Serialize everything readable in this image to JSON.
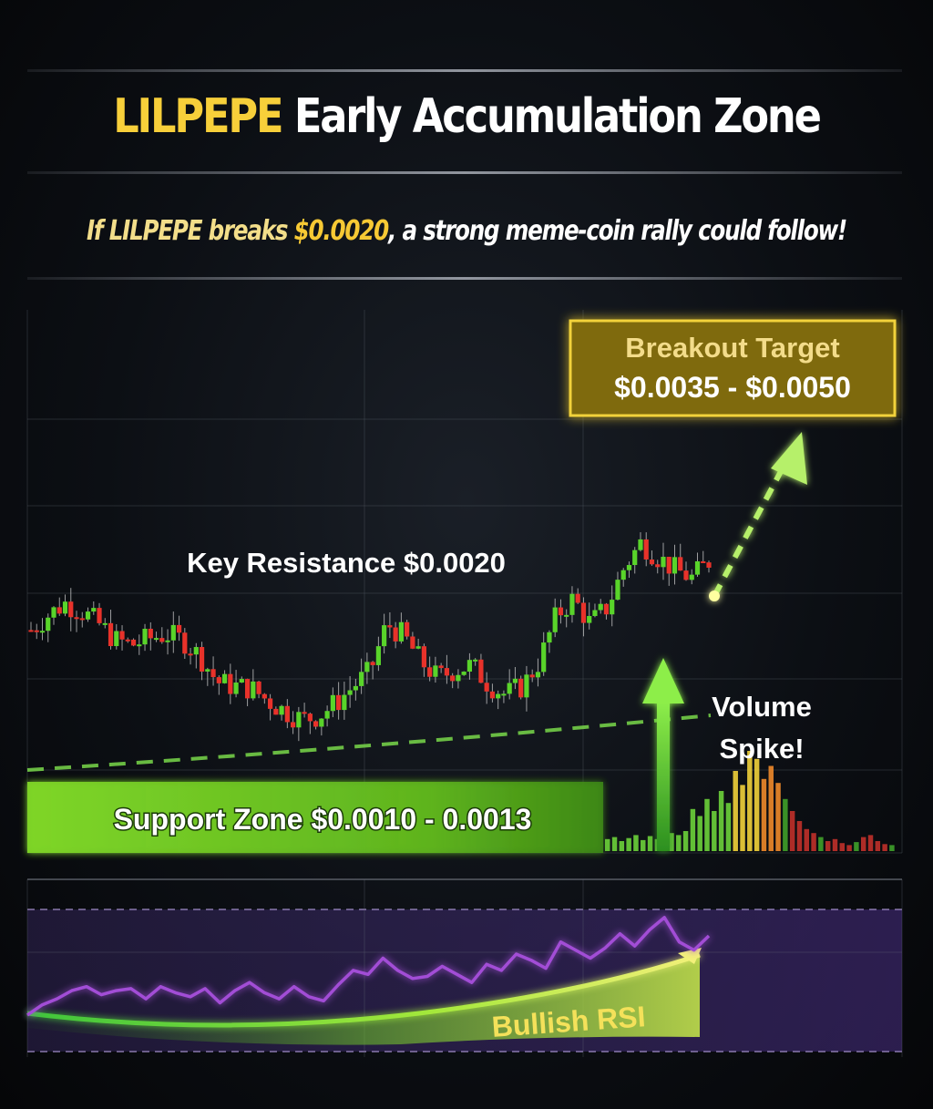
{
  "header": {
    "title_accent": "LILPEPE",
    "title_rest": "Early Accumulation Zone",
    "subtitle_part1": "If LILPEPE breaks",
    "subtitle_price": "$0.0020",
    "subtitle_part2": ", a strong meme-coin rally could follow!"
  },
  "colors": {
    "accent_yellow": "#f7cf3a",
    "bull_green": "#59d42a",
    "bear_red": "#e8322a",
    "resistance_red": "#ff3b30",
    "support_green": "#8fe93a",
    "rsi_purple": "#a24dd6"
  },
  "chart_data": [
    {
      "type": "candlestick",
      "annotations": {
        "resistance": {
          "label": "Key Resistance $0.0020",
          "value": 0.002
        },
        "support": {
          "label": "Support Zone $0.0010 - 0.0013",
          "range": [
            0.001,
            0.0013
          ]
        },
        "target": {
          "title": "Breakout Target",
          "range_text": "$0.0035 - $0.0050",
          "range": [
            0.0035,
            0.005
          ]
        },
        "volume": {
          "line1": "Volume",
          "line2": "Spike!"
        }
      },
      "price_path": [
        0.00165,
        0.00172,
        0.00178,
        0.00174,
        0.00168,
        0.0016,
        0.00158,
        0.00161,
        0.00163,
        0.0016,
        0.00152,
        0.0014,
        0.00138,
        0.00137,
        0.00131,
        0.00126,
        0.00122,
        0.00124,
        0.0013,
        0.00138,
        0.00145,
        0.00168,
        0.00162,
        0.0015,
        0.00142,
        0.00146,
        0.00148,
        0.00139,
        0.00134,
        0.00138,
        0.0015,
        0.00172,
        0.0018,
        0.00168,
        0.00176,
        0.00195,
        0.00207,
        0.002,
        0.00194,
        0.0019,
        0.00198
      ],
      "volume": [
        0.12,
        0.14,
        0.1,
        0.13,
        0.16,
        0.11,
        0.15,
        0.12,
        0.14,
        0.18,
        0.16,
        0.2,
        0.42,
        0.35,
        0.52,
        0.4,
        0.6,
        0.48,
        0.8,
        0.66,
        1.0,
        0.92,
        0.72,
        0.85,
        0.68,
        0.52,
        0.4,
        0.3,
        0.22,
        0.18,
        0.14,
        0.1,
        0.12,
        0.08,
        0.06,
        0.09,
        0.14,
        0.16,
        0.1,
        0.07,
        0.06
      ]
    },
    {
      "type": "line",
      "label": "Bullish RSI",
      "values": [
        38,
        43,
        46,
        50,
        52,
        48,
        50,
        51,
        46,
        52,
        49,
        47,
        51,
        44,
        50,
        54,
        49,
        46,
        52,
        47,
        45,
        53,
        60,
        58,
        66,
        60,
        56,
        57,
        62,
        58,
        54,
        63,
        60,
        68,
        65,
        61,
        74,
        70,
        66,
        71,
        78,
        72,
        80,
        86,
        74,
        70,
        77
      ]
    }
  ]
}
